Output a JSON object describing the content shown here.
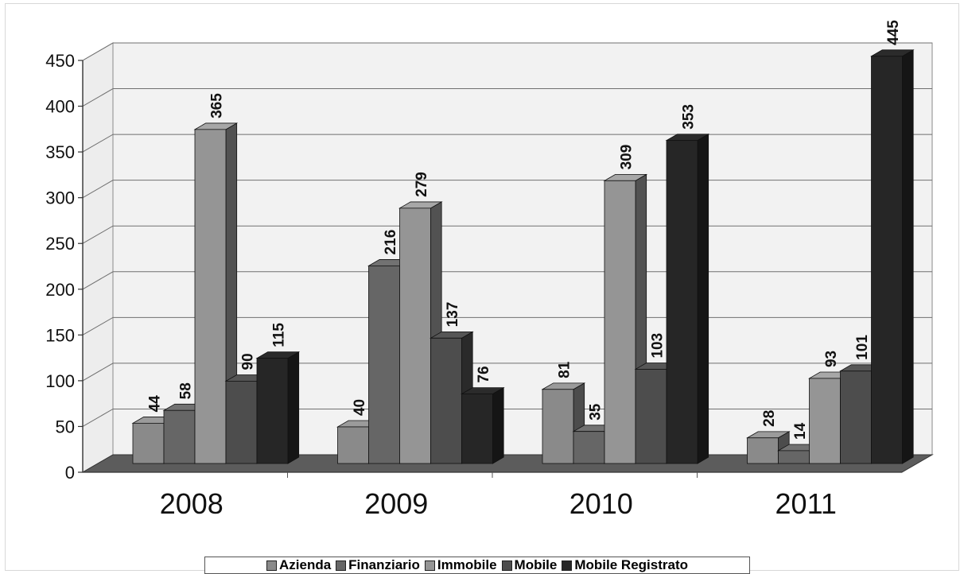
{
  "chart_data": {
    "type": "bar",
    "categories": [
      "2008",
      "2009",
      "2010",
      "2011"
    ],
    "series": [
      {
        "name": "Azienda",
        "values": [
          44,
          40,
          81,
          28
        ],
        "color": "#8a8a8a"
      },
      {
        "name": "Finanziario",
        "values": [
          58,
          216,
          35,
          14
        ],
        "color": "#666666"
      },
      {
        "name": "Immobile",
        "values": [
          365,
          279,
          309,
          93
        ],
        "color": "#959595"
      },
      {
        "name": "Mobile",
        "values": [
          90,
          137,
          103,
          101
        ],
        "color": "#4d4d4d"
      },
      {
        "name": "Mobile Registrato",
        "values": [
          115,
          76,
          353,
          445
        ],
        "color": "#262626"
      }
    ],
    "y_ticks": [
      "0",
      "50",
      "100",
      "150",
      "200",
      "250",
      "300",
      "350",
      "400",
      "450"
    ],
    "ylim": [
      0,
      450
    ],
    "grid": true,
    "three_d": true,
    "legend_position": "bottom"
  }
}
